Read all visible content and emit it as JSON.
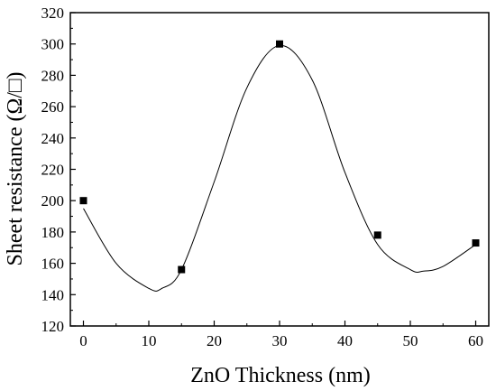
{
  "chart_data": {
    "type": "scatter",
    "xlabel": "ZnO Thickness (nm)",
    "ylabel": "Sheet resistance (Ω/□)",
    "xlim": [
      -2,
      62
    ],
    "ylim": [
      120,
      320
    ],
    "xticks": [
      0,
      10,
      20,
      30,
      40,
      50,
      60
    ],
    "yticks": [
      120,
      140,
      160,
      180,
      200,
      220,
      240,
      260,
      280,
      300,
      320
    ],
    "grid": false,
    "series": [
      {
        "marker": "square",
        "color": "#000000",
        "x": [
          0,
          15,
          30,
          45,
          60
        ],
        "y": [
          200,
          156,
          300,
          178,
          173
        ]
      }
    ],
    "fit_curve": {
      "style": "smooth spline",
      "color": "#000000",
      "x": [
        0,
        5,
        10,
        12,
        15,
        20,
        25,
        30,
        35,
        40,
        45,
        50,
        52,
        55,
        60
      ],
      "y": [
        195,
        160,
        144,
        144,
        156,
        212,
        272,
        299,
        277,
        218,
        172,
        156,
        155,
        158,
        172
      ]
    }
  }
}
